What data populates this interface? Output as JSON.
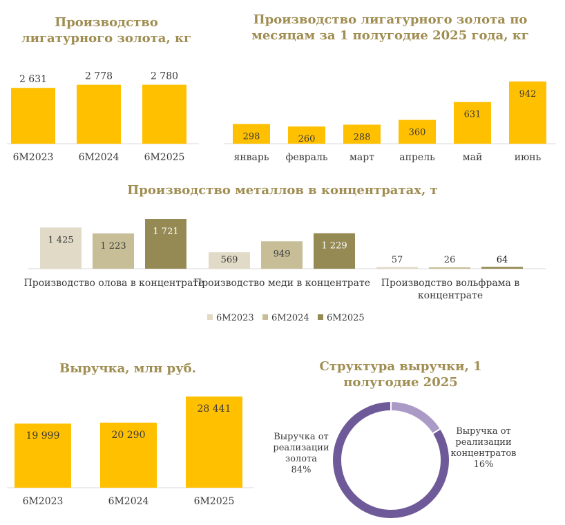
{
  "chart_data": [
    {
      "id": "gold_by_year",
      "type": "bar",
      "title": "Производство лигатурного золота, кг",
      "title_lines": [
        "Производство",
        "лигатурного золота, кг"
      ],
      "categories": [
        "6M2023",
        "6M2024",
        "6M2025"
      ],
      "values": [
        2631,
        2778,
        2780
      ],
      "labels": [
        "2 631",
        "2 778",
        "2 780"
      ],
      "ylim": [
        0,
        2800
      ],
      "color": "#ffc000"
    },
    {
      "id": "gold_by_month",
      "type": "bar",
      "title": "Производство лигатурного золота по месяцам за 1 полугодие 2025 года, кг",
      "title_lines": [
        "Производство лигатурного золота по",
        "месяцам за 1 полугодие 2025 года, кг"
      ],
      "categories": [
        "январь",
        "февраль",
        "март",
        "апрель",
        "май",
        "июнь"
      ],
      "values": [
        298,
        260,
        288,
        360,
        631,
        942
      ],
      "labels": [
        "298",
        "260",
        "288",
        "360",
        "631",
        "942"
      ],
      "ylim": [
        0,
        942
      ],
      "color": "#ffc000"
    },
    {
      "id": "metals_in_concentrate",
      "type": "bar",
      "title": "Производство металлов в концентратах, т",
      "categories": [
        "Производство олова в концентрате",
        "Производство меди в концентрате",
        "Производство вольфрама в концентрате"
      ],
      "category_lines": [
        [
          "Производство олова в концентрате"
        ],
        [
          "Производство меди в концентрате"
        ],
        [
          "Производство вольфрама в",
          "концентрате"
        ]
      ],
      "series": [
        {
          "name": "6M2023",
          "values": [
            1425,
            569,
            57
          ],
          "labels": [
            "1 425",
            "569",
            "57"
          ],
          "color": "#e0dac6"
        },
        {
          "name": "6M2024",
          "values": [
            1223,
            949,
            26
          ],
          "labels": [
            "1 223",
            "949",
            "26"
          ],
          "color": "#c7be97"
        },
        {
          "name": "6M2025",
          "values": [
            1721,
            1229,
            64
          ],
          "labels": [
            "1 721",
            "1 229",
            "64"
          ],
          "color": "#958a54"
        }
      ],
      "ylim": [
        0,
        1721
      ],
      "legend": "bottom"
    },
    {
      "id": "revenue",
      "type": "bar",
      "title": "Выручка, млн руб.",
      "categories": [
        "6M2023",
        "6M2024",
        "6M2025"
      ],
      "values": [
        19999,
        20290,
        28441
      ],
      "labels": [
        "19 999",
        "20 290",
        "28 441"
      ],
      "ylim": [
        0,
        28441
      ],
      "color": "#ffc000"
    },
    {
      "id": "revenue_structure",
      "type": "pie",
      "donut": true,
      "title": "Структура выручки, 1 полугодие 2025",
      "title_lines": [
        "Структура выручки, 1",
        "полугодие 2025"
      ],
      "slices": [
        {
          "name": "Выручка от реализации золота",
          "value": 84,
          "label_lines": [
            "Выручка от",
            "реализации",
            "золота",
            "84%"
          ],
          "color": "#6f5a99"
        },
        {
          "name": "Выручка от реализации концентратов",
          "value": 16,
          "label_lines": [
            "Выручка от",
            "реализации",
            "концентратов",
            "16%"
          ],
          "color": "#a99bc6"
        }
      ]
    }
  ]
}
